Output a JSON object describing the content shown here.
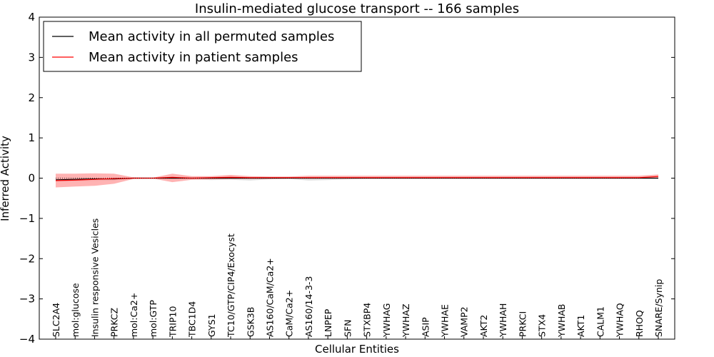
{
  "chart_data": {
    "type": "line",
    "title": "Insulin-mediated glucose transport -- 166 samples",
    "xlabel": "Cellular Entities",
    "ylabel": "Inferred Activity",
    "ylim": [
      -4,
      4
    ],
    "yticks": [
      -4,
      -3,
      -2,
      -1,
      0,
      1,
      2,
      3,
      4
    ],
    "ytick_labels": [
      "−4",
      "−3",
      "−2",
      "−1",
      "0",
      "1",
      "2",
      "3",
      "4"
    ],
    "legend_position": "top-left",
    "categories": [
      "SLC2A4",
      "mol:glucose",
      "Insulin responsive Vesicles",
      "PRKCZ",
      "mol:Ca2+",
      "mol:GTP",
      "TRIP10",
      "TBC1D4",
      "GYS1",
      "TC10/GTP/CIP4/Exocyst",
      "GSK3B",
      "AS160/CaM/Ca2+",
      "CaM/Ca2+",
      "AS160/14-3-3",
      "LNPEP",
      "SFN",
      "STXBP4",
      "YWHAG",
      "YWHAZ",
      "ASIP",
      "YWHAE",
      "VAMP2",
      "AKT2",
      "YWHAH",
      "PRKCI",
      "STX4",
      "YWHAB",
      "AKT1",
      "CALM1",
      "YWHAQ",
      "RHOQ",
      "SNARE/Synip"
    ],
    "series": [
      {
        "name": "Mean activity in all permuted samples",
        "color": "#000000",
        "values": [
          -0.04,
          -0.03,
          -0.02,
          -0.02,
          0.0,
          0.0,
          0.0,
          0.0,
          0.0,
          0.0,
          0.0,
          0.0,
          0.0,
          0.0,
          0.0,
          0.0,
          0.0,
          0.0,
          0.0,
          0.0,
          0.0,
          0.0,
          0.0,
          0.0,
          0.0,
          0.0,
          0.0,
          0.0,
          0.0,
          0.0,
          0.0,
          0.0
        ],
        "band_upper": [
          0.01,
          0.01,
          0.01,
          0.01,
          0.0,
          0.0,
          0.01,
          0.01,
          0.01,
          0.01,
          0.01,
          0.01,
          0.0,
          0.0,
          0.0,
          0.0,
          0.0,
          0.0,
          0.0,
          0.0,
          0.0,
          0.0,
          0.0,
          0.0,
          0.0,
          0.0,
          0.0,
          0.0,
          0.0,
          0.0,
          0.0,
          0.0
        ],
        "band_lower": [
          -0.09,
          -0.08,
          -0.07,
          -0.06,
          -0.01,
          -0.01,
          -0.02,
          -0.03,
          -0.05,
          -0.04,
          -0.06,
          -0.03,
          -0.02,
          -0.06,
          -0.05,
          -0.03,
          -0.02,
          -0.02,
          -0.02,
          -0.02,
          -0.02,
          -0.02,
          -0.02,
          -0.02,
          -0.02,
          -0.02,
          -0.02,
          -0.02,
          -0.02,
          -0.02,
          -0.02,
          -0.02
        ]
      },
      {
        "name": "Mean activity in patient samples",
        "color": "#ff0000",
        "fill": "#ff9999",
        "values": [
          -0.06,
          -0.05,
          -0.03,
          -0.01,
          0.0,
          0.0,
          0.02,
          0.0,
          0.01,
          0.02,
          0.01,
          0.01,
          0.01,
          0.01,
          0.01,
          0.01,
          0.01,
          0.01,
          0.01,
          0.01,
          0.01,
          0.01,
          0.01,
          0.01,
          0.01,
          0.01,
          0.01,
          0.01,
          0.01,
          0.01,
          0.01,
          0.04
        ],
        "band_upper": [
          0.11,
          0.11,
          0.12,
          0.11,
          0.02,
          0.01,
          0.11,
          0.05,
          0.05,
          0.08,
          0.05,
          0.04,
          0.04,
          0.06,
          0.06,
          0.06,
          0.06,
          0.06,
          0.06,
          0.06,
          0.06,
          0.06,
          0.06,
          0.06,
          0.06,
          0.06,
          0.06,
          0.06,
          0.06,
          0.06,
          0.06,
          0.09
        ],
        "band_lower": [
          -0.23,
          -0.21,
          -0.19,
          -0.14,
          -0.02,
          -0.01,
          -0.1,
          -0.04,
          -0.03,
          -0.02,
          -0.02,
          -0.02,
          -0.01,
          -0.01,
          -0.01,
          -0.01,
          -0.01,
          -0.01,
          -0.01,
          -0.01,
          -0.01,
          -0.01,
          -0.01,
          -0.01,
          -0.01,
          -0.01,
          -0.01,
          -0.01,
          -0.01,
          -0.01,
          -0.01,
          0.01
        ]
      }
    ]
  }
}
